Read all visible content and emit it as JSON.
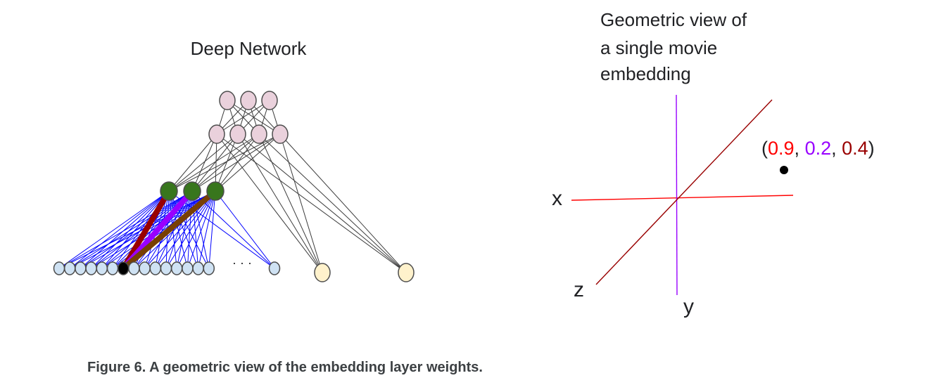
{
  "network": {
    "title": "Deep Network",
    "ellipsis": "· · ·"
  },
  "geometric_view": {
    "title_lines": [
      "Geometric view of",
      "a single movie",
      "embedding"
    ],
    "axis_x": "x",
    "axis_y": "y",
    "axis_z": "z",
    "point": {
      "open": "(",
      "x_value": "0.9",
      "sep1": ", ",
      "y_value": "0.2",
      "sep2": ", ",
      "z_value": "0.4",
      "close": ")"
    }
  },
  "caption": "Figure 6. A geometric view of the embedding layer weights.",
  "colors": {
    "top_node_fill": "#ead1dc",
    "embedding_node_fill": "#38761d",
    "input_node_fill": "#cfe2f3",
    "input_edge": "#0000ff",
    "side_node_fill": "#fff2cc",
    "selected_input": "#000000",
    "x_color": "#ff0000",
    "y_color": "#9900ff",
    "z_color": "#990000",
    "weight_x": "#990000",
    "weight_y": "#9900ff",
    "weight_z": "#783f04"
  }
}
